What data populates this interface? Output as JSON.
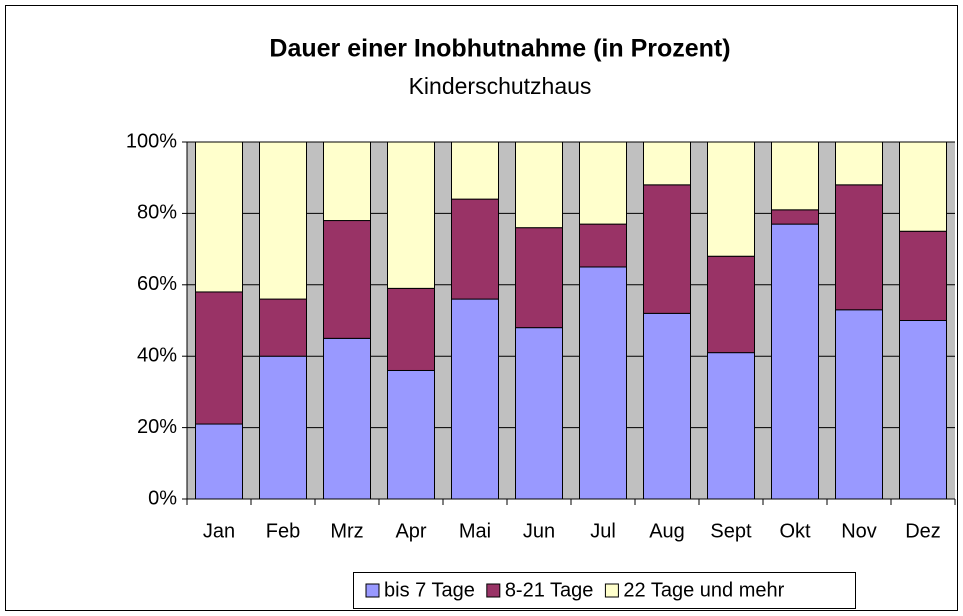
{
  "chart_data": {
    "type": "stacked_bar",
    "title": "Dauer einer Inobhutnahme (in Prozent)",
    "subtitle": "Kinderschutzhaus",
    "categories": [
      "Jan",
      "Feb",
      "Mrz",
      "Apr",
      "Mai",
      "Jun",
      "Jul",
      "Aug",
      "Sept",
      "Okt",
      "Nov",
      "Dez"
    ],
    "series": [
      {
        "name": "bis 7 Tage",
        "color": "#9999ff",
        "values": [
          21,
          40,
          45,
          36,
          56,
          48,
          65,
          52,
          41,
          77,
          53,
          50
        ]
      },
      {
        "name": "8-21 Tage",
        "color": "#993366",
        "values": [
          37,
          16,
          33,
          23,
          28,
          28,
          12,
          36,
          27,
          4,
          35,
          25
        ]
      },
      {
        "name": "22 Tage und mehr",
        "color": "#ffffcc",
        "values": [
          42,
          44,
          22,
          41,
          16,
          24,
          23,
          12,
          32,
          19,
          12,
          25
        ]
      }
    ],
    "ylim": [
      0,
      100
    ],
    "yticks": [
      {
        "value": 0,
        "label": "0%"
      },
      {
        "value": 20,
        "label": "20%"
      },
      {
        "value": 40,
        "label": "40%"
      },
      {
        "value": 60,
        "label": "60%"
      },
      {
        "value": 80,
        "label": "80%"
      },
      {
        "value": 100,
        "label": "100%"
      }
    ],
    "grid": true,
    "legend": "bottom"
  }
}
